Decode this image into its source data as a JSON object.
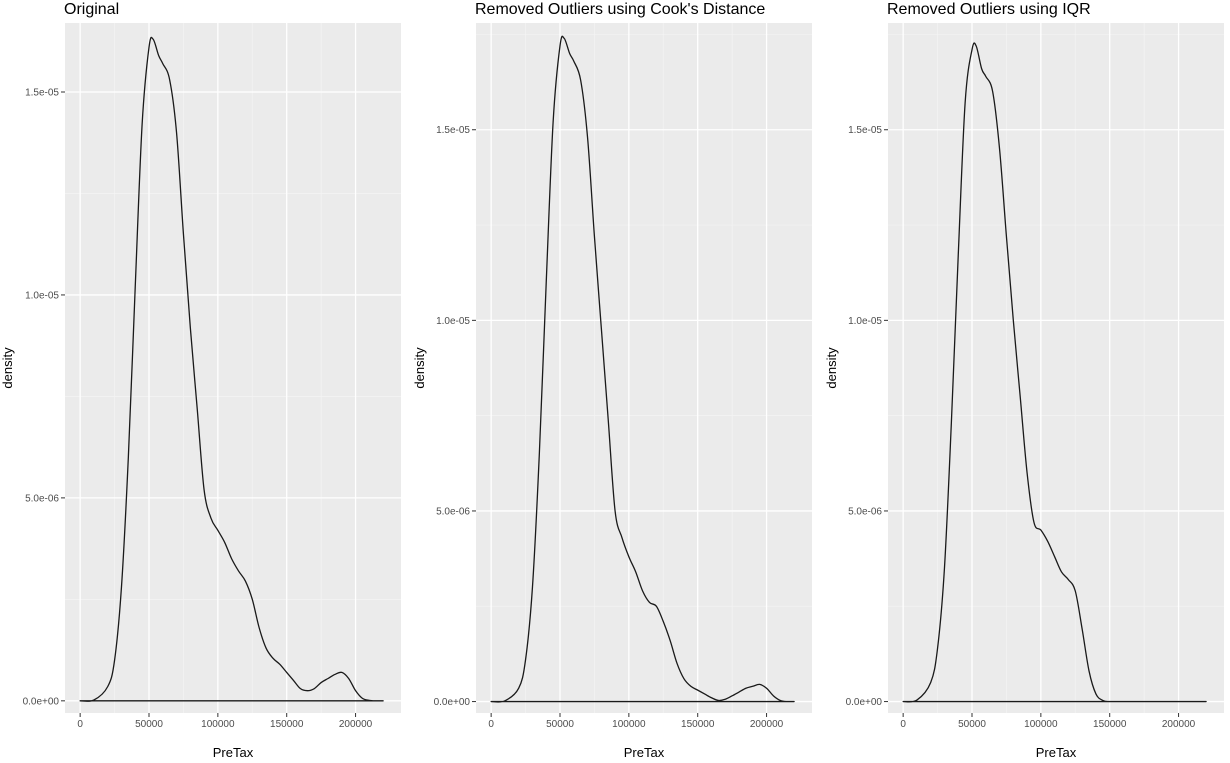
{
  "colors": {
    "panel_bg": "#ebebeb",
    "grid_major": "#ffffff",
    "grid_minor": "#f4f4f4",
    "line": "#1a1a1a",
    "tick_text": "#4d4d4d"
  },
  "chart_data": [
    {
      "type": "line",
      "title": "Original",
      "xlabel": "PreTax",
      "ylabel": "density",
      "xlim": [
        -11000,
        233000
      ],
      "ylim": [
        -3e-07,
        1.67e-05
      ],
      "x_ticks": [
        0,
        50000,
        100000,
        150000,
        200000
      ],
      "x_tick_labels": [
        "0",
        "50000",
        "100000",
        "150000",
        "200000"
      ],
      "y_ticks": [
        0,
        5e-06,
        1e-05,
        1.5e-05
      ],
      "y_tick_labels": [
        "0.0e+00",
        "5.0e-06",
        "1.0e-05",
        "1.5e-05"
      ],
      "grid": true,
      "series": [
        {
          "x": [
            0,
            10000,
            20000,
            25000,
            30000,
            35000,
            40000,
            45000,
            50000,
            53000,
            57000,
            60000,
            65000,
            70000,
            75000,
            80000,
            85000,
            90000,
            95000,
            100000,
            105000,
            110000,
            115000,
            120000,
            125000,
            130000,
            135000,
            140000,
            145000,
            150000,
            155000,
            160000,
            165000,
            170000,
            175000,
            180000,
            185000,
            190000,
            195000,
            200000,
            205000,
            210000,
            215000,
            220000
          ],
          "y": [
            0,
            2e-08,
            3.5e-07,
            1e-06,
            2.8e-06,
            6e-06,
            1.02e-05,
            1.42e-05,
            1.61e-05,
            1.63e-05,
            1.59e-05,
            1.57e-05,
            1.53e-05,
            1.4e-05,
            1.15e-05,
            9.2e-06,
            7.2e-06,
            5.2e-06,
            4.5e-06,
            4.2e-06,
            3.9e-06,
            3.5e-06,
            3.2e-06,
            2.95e-06,
            2.5e-06,
            1.8e-06,
            1.3e-06,
            1.05e-06,
            9e-07,
            7e-07,
            5e-07,
            3e-07,
            2.5e-07,
            3e-07,
            4.5e-07,
            5.5e-07,
            6.5e-07,
            7e-07,
            5.5e-07,
            2.5e-07,
            6e-08,
            1e-08,
            0,
            0
          ]
        }
      ]
    },
    {
      "type": "line",
      "title": "Removed Outliers using Cook's Distance",
      "xlabel": "PreTax",
      "ylabel": "density",
      "xlim": [
        -11000,
        233000
      ],
      "ylim": [
        -3e-07,
        1.78e-05
      ],
      "x_ticks": [
        0,
        50000,
        100000,
        150000,
        200000
      ],
      "x_tick_labels": [
        "0",
        "50000",
        "100000",
        "150000",
        "200000"
      ],
      "y_ticks": [
        0,
        5e-06,
        1e-05,
        1.5e-05
      ],
      "y_tick_labels": [
        "0.0e+00",
        "5.0e-06",
        "1.0e-05",
        "1.5e-05"
      ],
      "grid": true,
      "series": [
        {
          "x": [
            0,
            10000,
            20000,
            25000,
            30000,
            35000,
            40000,
            45000,
            50000,
            53000,
            57000,
            60000,
            65000,
            70000,
            75000,
            80000,
            85000,
            90000,
            95000,
            100000,
            105000,
            110000,
            115000,
            120000,
            125000,
            130000,
            135000,
            140000,
            145000,
            150000,
            155000,
            160000,
            165000,
            170000,
            175000,
            180000,
            185000,
            190000,
            195000,
            200000,
            205000,
            210000,
            215000,
            220000
          ],
          "y": [
            0,
            2e-08,
            3.5e-07,
            1.1e-06,
            3e-06,
            6.5e-06,
            1.1e-05,
            1.52e-05,
            1.72e-05,
            1.74e-05,
            1.7e-05,
            1.68e-05,
            1.63e-05,
            1.48e-05,
            1.22e-05,
            9.8e-06,
            7.4e-06,
            5e-06,
            4.3e-06,
            3.8e-06,
            3.4e-06,
            2.9e-06,
            2.6e-06,
            2.5e-06,
            2.1e-06,
            1.6e-06,
            1e-06,
            6e-07,
            4e-07,
            3e-07,
            2e-07,
            1e-07,
            3e-08,
            6e-08,
            1.5e-07,
            2.5e-07,
            3.5e-07,
            4e-07,
            4.5e-07,
            3.5e-07,
            1.5e-07,
            3e-08,
            0,
            0
          ]
        }
      ]
    },
    {
      "type": "line",
      "title": "Removed Outliers using IQR",
      "xlabel": "PreTax",
      "ylabel": "density",
      "xlim": [
        -11000,
        233000
      ],
      "ylim": [
        -3e-07,
        1.78e-05
      ],
      "x_ticks": [
        0,
        50000,
        100000,
        150000,
        200000
      ],
      "x_tick_labels": [
        "0",
        "50000",
        "100000",
        "150000",
        "200000"
      ],
      "y_ticks": [
        0,
        5e-06,
        1e-05,
        1.5e-05
      ],
      "y_tick_labels": [
        "0.0e+00",
        "5.0e-06",
        "1.0e-05",
        "1.5e-05"
      ],
      "grid": true,
      "series": [
        {
          "x": [
            0,
            10000,
            20000,
            25000,
            30000,
            35000,
            40000,
            45000,
            50000,
            53000,
            57000,
            60000,
            65000,
            70000,
            75000,
            80000,
            85000,
            90000,
            95000,
            100000,
            105000,
            110000,
            115000,
            120000,
            125000,
            130000,
            135000,
            140000,
            145000,
            150000,
            160000,
            180000,
            200000,
            220000
          ],
          "y": [
            0,
            4e-08,
            5e-07,
            1.4e-06,
            3.5e-06,
            7.3e-06,
            1.17e-05,
            1.57e-05,
            1.71e-05,
            1.72e-05,
            1.66e-05,
            1.64e-05,
            1.6e-05,
            1.45e-05,
            1.22e-05,
            1e-05,
            8e-06,
            6e-06,
            4.7e-06,
            4.5e-06,
            4.2e-06,
            3.8e-06,
            3.4e-06,
            3.2e-06,
            2.9e-06,
            1.9e-06,
            8e-07,
            2e-07,
            3e-08,
            0,
            0,
            0,
            0,
            0
          ]
        }
      ]
    }
  ]
}
